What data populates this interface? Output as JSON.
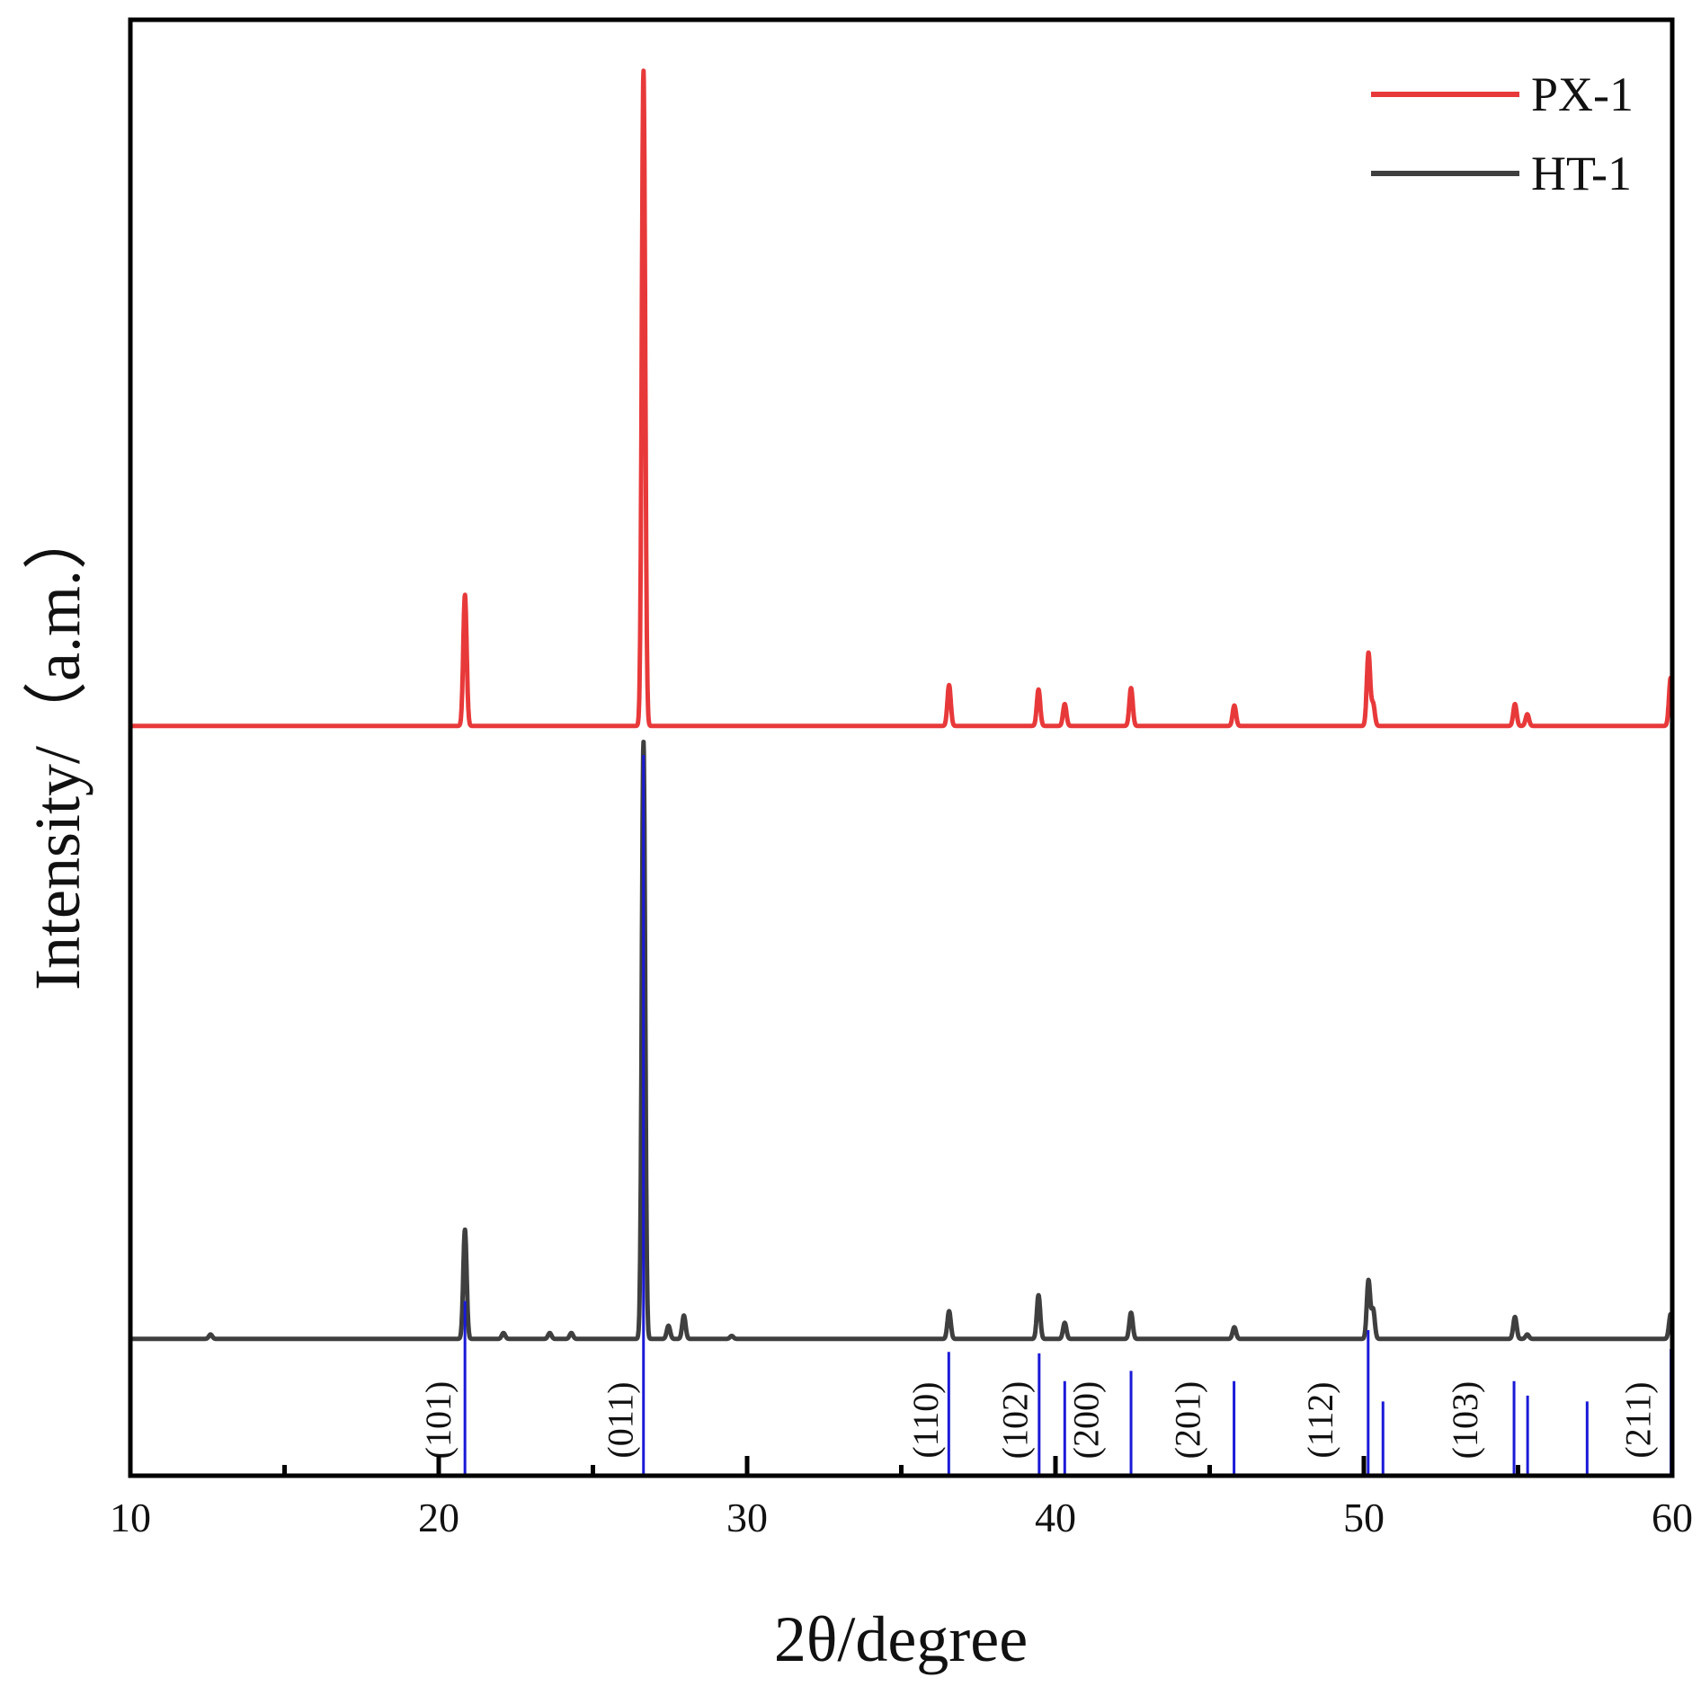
{
  "chart_data": {
    "type": "line",
    "xlabel": "2θ/degree",
    "ylabel": "Intensity/（a.m.）",
    "xlim": [
      10,
      60
    ],
    "ylim": [
      0,
      100
    ],
    "x_ticks": [
      10,
      20,
      30,
      40,
      50,
      60
    ],
    "x_minor_ticks": [
      15,
      25,
      35,
      45,
      55
    ],
    "legend": {
      "position": "top-right"
    },
    "grid": false,
    "series": [
      {
        "name": "PX-1",
        "color": "#e8393a",
        "baseline": 51.5,
        "peaks": [
          {
            "x": 20.85,
            "h": 9.0
          },
          {
            "x": 26.64,
            "h": 45.0
          },
          {
            "x": 36.55,
            "h": 2.8
          },
          {
            "x": 39.45,
            "h": 2.5
          },
          {
            "x": 40.3,
            "h": 1.5
          },
          {
            "x": 42.45,
            "h": 2.6
          },
          {
            "x": 45.8,
            "h": 1.4
          },
          {
            "x": 50.15,
            "h": 5.0
          },
          {
            "x": 50.3,
            "h": 1.5
          },
          {
            "x": 54.9,
            "h": 1.5
          },
          {
            "x": 55.3,
            "h": 0.8
          },
          {
            "x": 59.95,
            "h": 3.3
          }
        ]
      },
      {
        "name": "HT-1",
        "color": "#3f3f3f",
        "baseline": 9.4,
        "peaks": [
          {
            "x": 12.6,
            "h": 0.3
          },
          {
            "x": 20.85,
            "h": 7.5
          },
          {
            "x": 22.1,
            "h": 0.4
          },
          {
            "x": 23.6,
            "h": 0.4
          },
          {
            "x": 24.3,
            "h": 0.4
          },
          {
            "x": 26.64,
            "h": 41.0
          },
          {
            "x": 27.45,
            "h": 0.9
          },
          {
            "x": 27.95,
            "h": 1.6
          },
          {
            "x": 29.5,
            "h": 0.2
          },
          {
            "x": 36.55,
            "h": 1.9
          },
          {
            "x": 39.45,
            "h": 3.0
          },
          {
            "x": 40.3,
            "h": 1.1
          },
          {
            "x": 42.45,
            "h": 1.8
          },
          {
            "x": 45.8,
            "h": 0.8
          },
          {
            "x": 50.15,
            "h": 4.0
          },
          {
            "x": 50.3,
            "h": 2.0
          },
          {
            "x": 54.9,
            "h": 1.5
          },
          {
            "x": 55.3,
            "h": 0.3
          },
          {
            "x": 59.95,
            "h": 1.7
          }
        ]
      }
    ],
    "reference_lines": {
      "color": "#1a1ad8",
      "lines": [
        {
          "x": 20.85,
          "h": 12.0
        },
        {
          "x": 26.64,
          "h": 49.5
        },
        {
          "x": 36.54,
          "h": 8.5
        },
        {
          "x": 39.47,
          "h": 8.4
        },
        {
          "x": 40.3,
          "h": 6.5
        },
        {
          "x": 42.45,
          "h": 7.2
        },
        {
          "x": 45.79,
          "h": 6.5
        },
        {
          "x": 50.14,
          "h": 10.0
        },
        {
          "x": 50.62,
          "h": 5.1
        },
        {
          "x": 54.87,
          "h": 6.5
        },
        {
          "x": 55.31,
          "h": 5.5
        },
        {
          "x": 57.24,
          "h": 5.1
        },
        {
          "x": 59.96,
          "h": 8.7
        }
      ]
    },
    "annotations": [
      {
        "text": "(101)",
        "x": 20.0
      },
      {
        "text": "(011)",
        "x": 25.9
      },
      {
        "text": "(110)",
        "x": 35.8
      },
      {
        "text": "(102)",
        "x": 38.7
      },
      {
        "text": "(200)",
        "x": 41.0
      },
      {
        "text": "(201)",
        "x": 44.3
      },
      {
        "text": "(112)",
        "x": 48.6
      },
      {
        "text": "(103)",
        "x": 53.3
      },
      {
        "text": "(211)",
        "x": 58.9
      }
    ]
  }
}
